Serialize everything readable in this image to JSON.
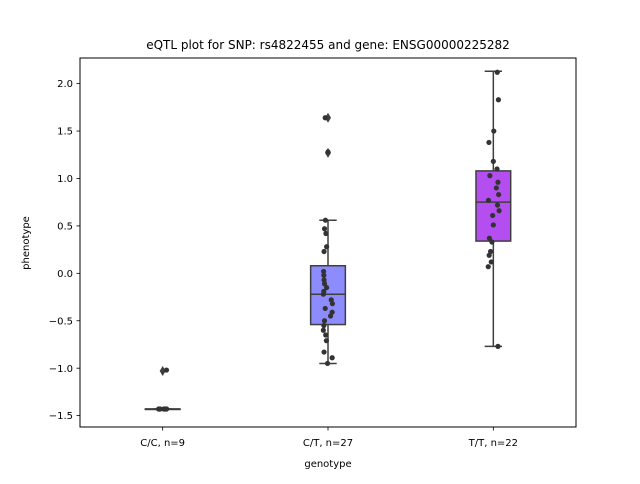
{
  "chart_data": {
    "type": "box",
    "title": "eQTL plot for SNP: rs4822455 and gene: ENSG00000225282",
    "xlabel": "genotype",
    "ylabel": "phenotype",
    "ylim": [
      -1.62,
      2.27
    ],
    "yticks": [
      -1.5,
      -1.0,
      -0.5,
      0.0,
      0.5,
      1.0,
      1.5,
      2.0
    ],
    "ytick_labels": [
      "−1.5",
      "−1.0",
      "−0.5",
      "0.0",
      "0.5",
      "1.0",
      "1.5",
      "2.0"
    ],
    "grid": false,
    "categories": [
      "C/C, n=9",
      "C/T, n=27",
      "T/T, n=22"
    ],
    "groups": [
      {
        "category": "C/C, n=9",
        "color": "#202040",
        "box": {
          "q1": -1.43,
          "median": -1.43,
          "q3": -1.43,
          "whisker_low": -1.43,
          "whisker_high": -1.43
        },
        "outliers": [
          -1.03
        ],
        "points": [
          {
            "j": -0.35,
            "y": -1.43
          },
          {
            "j": -0.28,
            "y": -1.43
          },
          {
            "j": -0.22,
            "y": -1.43
          },
          {
            "j": 0.1,
            "y": -1.43
          },
          {
            "j": 0.16,
            "y": -1.43
          },
          {
            "j": 0.24,
            "y": -1.43
          },
          {
            "j": 0.3,
            "y": -1.43
          },
          {
            "j": 0.34,
            "y": -1.43
          },
          {
            "j": 0.33,
            "y": -1.02
          }
        ]
      },
      {
        "category": "C/T, n=27",
        "color": "#8c8cff",
        "box": {
          "q1": -0.54,
          "median": -0.22,
          "q3": 0.08,
          "whisker_low": -0.95,
          "whisker_high": 0.56
        },
        "outliers": [
          1.64,
          1.27
        ],
        "points": [
          {
            "j": -0.24,
            "y": 1.64
          },
          {
            "j": 0.0,
            "y": 1.28
          },
          {
            "j": -0.22,
            "y": 0.56
          },
          {
            "j": -0.3,
            "y": 0.47
          },
          {
            "j": -0.18,
            "y": 0.42
          },
          {
            "j": -0.12,
            "y": 0.28
          },
          {
            "j": -0.34,
            "y": 0.23
          },
          {
            "j": -0.38,
            "y": 0.02
          },
          {
            "j": -0.36,
            "y": -0.02
          },
          {
            "j": -0.34,
            "y": -0.07
          },
          {
            "j": -0.3,
            "y": -0.11
          },
          {
            "j": -0.12,
            "y": -0.15
          },
          {
            "j": -0.36,
            "y": -0.19
          },
          {
            "j": -0.4,
            "y": -0.22
          },
          {
            "j": 0.28,
            "y": -0.28
          },
          {
            "j": 0.38,
            "y": -0.32
          },
          {
            "j": -0.24,
            "y": -0.37
          },
          {
            "j": 0.36,
            "y": -0.41
          },
          {
            "j": 0.22,
            "y": -0.45
          },
          {
            "j": -0.3,
            "y": -0.5
          },
          {
            "j": -0.36,
            "y": -0.55
          },
          {
            "j": -0.4,
            "y": -0.6
          },
          {
            "j": -0.2,
            "y": -0.65
          },
          {
            "j": -0.14,
            "y": -0.71
          },
          {
            "j": -0.34,
            "y": -0.83
          },
          {
            "j": 0.36,
            "y": -0.89
          },
          {
            "j": -0.04,
            "y": -0.95
          }
        ]
      },
      {
        "category": "T/T, n=22",
        "color": "#b44ef0",
        "box": {
          "q1": 0.34,
          "median": 0.75,
          "q3": 1.08,
          "whisker_low": -0.77,
          "whisker_high": 2.13
        },
        "outliers": [],
        "points": [
          {
            "j": 0.34,
            "y": 2.12
          },
          {
            "j": 0.44,
            "y": 1.83
          },
          {
            "j": 0.04,
            "y": 1.5
          },
          {
            "j": -0.38,
            "y": 1.38
          },
          {
            "j": 0.0,
            "y": 1.18
          },
          {
            "j": 0.32,
            "y": 1.1
          },
          {
            "j": -0.3,
            "y": 1.03
          },
          {
            "j": 0.4,
            "y": 0.96
          },
          {
            "j": 0.26,
            "y": 0.9
          },
          {
            "j": 0.46,
            "y": 0.83
          },
          {
            "j": -0.42,
            "y": 0.77
          },
          {
            "j": 0.36,
            "y": 0.72
          },
          {
            "j": 0.5,
            "y": 0.66
          },
          {
            "j": -0.06,
            "y": 0.61
          },
          {
            "j": 0.0,
            "y": 0.51
          },
          {
            "j": -0.34,
            "y": 0.37
          },
          {
            "j": -0.12,
            "y": 0.33
          },
          {
            "j": -0.24,
            "y": 0.23
          },
          {
            "j": -0.36,
            "y": 0.19
          },
          {
            "j": -0.18,
            "y": 0.12
          },
          {
            "j": -0.44,
            "y": 0.07
          },
          {
            "j": 0.4,
            "y": -0.77
          }
        ]
      }
    ]
  }
}
